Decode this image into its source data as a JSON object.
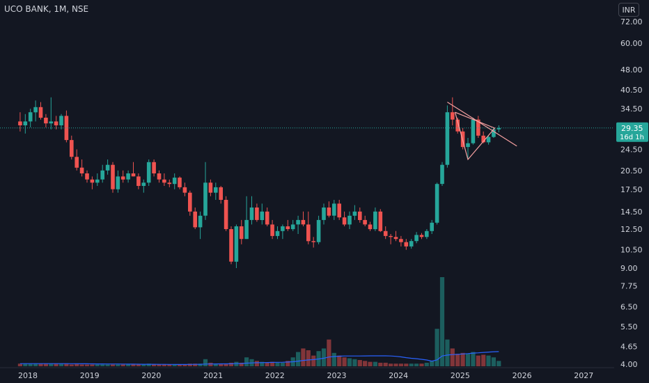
{
  "header": {
    "symbol": "UCO BANK, 1M, NSE",
    "currency": "INR"
  },
  "price_tag": {
    "value": "29.35",
    "countdown": "16d 1h",
    "color": "#26a69a"
  },
  "colors": {
    "background": "#131722",
    "up": "#26a69a",
    "down": "#ef5350",
    "trendline": "#f7a1a1",
    "volume_ma": "#2962ff",
    "axis_text": "#d1d4dc"
  },
  "chart_data": {
    "type": "candlestick",
    "scale": "log",
    "y_ticks": [
      "72.00",
      "60.00",
      "48.00",
      "40.50",
      "34.50",
      "29.35",
      "24.50",
      "20.50",
      "17.50",
      "14.50",
      "12.50",
      "10.50",
      "9.00",
      "7.75",
      "6.50",
      "5.50",
      "4.65",
      "4.00"
    ],
    "x_ticks": [
      "2018",
      "2019",
      "2020",
      "2021",
      "2022",
      "2023",
      "2024",
      "2025",
      "2026",
      "2027"
    ],
    "x_tick_start": "2018-01",
    "candles": [
      [
        31,
        33.5,
        28.5,
        30
      ],
      [
        30,
        33,
        28,
        31
      ],
      [
        31,
        34.5,
        29.5,
        33.5
      ],
      [
        33.5,
        37,
        31,
        35
      ],
      [
        35,
        36.5,
        31.5,
        32
      ],
      [
        32,
        33,
        29.5,
        30.5
      ],
      [
        30.5,
        38,
        29,
        31
      ],
      [
        31,
        32.5,
        29,
        30
      ],
      [
        30,
        33,
        29,
        32.5
      ],
      [
        32.5,
        34,
        26,
        26.5
      ],
      [
        26.5,
        27.5,
        22.5,
        23
      ],
      [
        23,
        24.5,
        20.5,
        21
      ],
      [
        21,
        22.5,
        19.5,
        20
      ],
      [
        20,
        20.5,
        18.5,
        19
      ],
      [
        19,
        19.5,
        17.5,
        18.5
      ],
      [
        18.5,
        20,
        18,
        19
      ],
      [
        19,
        21.5,
        18.5,
        20.5
      ],
      [
        20.5,
        22.5,
        19.8,
        21.5
      ],
      [
        21.5,
        22,
        17,
        17.5
      ],
      [
        17.5,
        20.5,
        17,
        19.5
      ],
      [
        19.5,
        20.5,
        18.5,
        19
      ],
      [
        19,
        20.5,
        18.5,
        20
      ],
      [
        20,
        22,
        19.5,
        19.5
      ],
      [
        19.5,
        20,
        17.5,
        18
      ],
      [
        18,
        19,
        17,
        18.5
      ],
      [
        18.5,
        22.5,
        18,
        22
      ],
      [
        22,
        22.5,
        19.5,
        20
      ],
      [
        20,
        20.5,
        18.5,
        19
      ],
      [
        19,
        20,
        18,
        18.5
      ],
      [
        18.5,
        19,
        17.8,
        18.3
      ],
      [
        18.3,
        20,
        17.5,
        19.3
      ],
      [
        19.3,
        19.5,
        17.5,
        17.8
      ],
      [
        17.8,
        18.5,
        16.5,
        17
      ],
      [
        17,
        17.3,
        14,
        14.5
      ],
      [
        14.5,
        15,
        12.5,
        12.7
      ],
      [
        12.7,
        14.5,
        11.5,
        14
      ],
      [
        14,
        22,
        13.5,
        18.5
      ],
      [
        18.5,
        19,
        16.5,
        17
      ],
      [
        17,
        18.5,
        16,
        17.8
      ],
      [
        17.8,
        18,
        15.5,
        16
      ],
      [
        16,
        16.5,
        12.3,
        12.5
      ],
      [
        12.5,
        12.8,
        9.3,
        9.5
      ],
      [
        9.5,
        13,
        9,
        12.8
      ],
      [
        12.8,
        13.5,
        11,
        11.5
      ],
      [
        11.5,
        16.5,
        11.5,
        13.5
      ],
      [
        13.5,
        16.5,
        13,
        15
      ],
      [
        15,
        15.5,
        13.3,
        13.5
      ],
      [
        13.5,
        15.5,
        13,
        14.5
      ],
      [
        14.5,
        15,
        12.8,
        13
      ],
      [
        13,
        13.5,
        11.5,
        11.8
      ],
      [
        11.8,
        12.8,
        11.5,
        12.3
      ],
      [
        12.3,
        13,
        11.5,
        12.8
      ],
      [
        12.8,
        13.5,
        12.3,
        12.5
      ],
      [
        12.5,
        13.5,
        12.3,
        13
      ],
      [
        13,
        14,
        12,
        13.5
      ],
      [
        13.5,
        14.5,
        12.8,
        13
      ],
      [
        13,
        14.5,
        11,
        11.3
      ],
      [
        11.3,
        11.7,
        10.7,
        11.2
      ],
      [
        11.2,
        14,
        11,
        13.5
      ],
      [
        13.5,
        15.5,
        13,
        15
      ],
      [
        15,
        15.8,
        13.8,
        14
      ],
      [
        14,
        16,
        13.5,
        15.5
      ],
      [
        15.5,
        16,
        13.5,
        13.8
      ],
      [
        13.8,
        14.5,
        12.8,
        13
      ],
      [
        13,
        14.5,
        12.5,
        14
      ],
      [
        14,
        15.3,
        13.5,
        14.5
      ],
      [
        14.5,
        15,
        13.2,
        13.5
      ],
      [
        13.5,
        14,
        12.8,
        13
      ],
      [
        13,
        13.3,
        12.3,
        12.5
      ],
      [
        12.5,
        15,
        12.3,
        14.5
      ],
      [
        14.5,
        14.8,
        12.2,
        12.3
      ],
      [
        12.3,
        12.8,
        11.5,
        11.8
      ],
      [
        11.8,
        12,
        11,
        11.7
      ],
      [
        11.7,
        12.3,
        11.3,
        11.5
      ],
      [
        11.5,
        11.8,
        10.8,
        11.2
      ],
      [
        11.2,
        11.5,
        10.5,
        10.8
      ],
      [
        10.8,
        11.5,
        10.6,
        11.3
      ],
      [
        11.3,
        12.2,
        11.1,
        11.9
      ],
      [
        11.9,
        12.1,
        11.5,
        11.7
      ],
      [
        11.7,
        12.5,
        11.5,
        12.3
      ],
      [
        12.3,
        13.5,
        12,
        13.2
      ],
      [
        13.2,
        18.5,
        13,
        18.3
      ],
      [
        18.3,
        22,
        18,
        21.5
      ],
      [
        21.5,
        35.5,
        21,
        33.5
      ],
      [
        33.5,
        38,
        30,
        31.5
      ],
      [
        31.5,
        32,
        28,
        28.5
      ],
      [
        28.5,
        29.3,
        24.5,
        25
      ],
      [
        25,
        27,
        22.5,
        25.8
      ],
      [
        25.8,
        32,
        25.5,
        31.5
      ],
      [
        31.5,
        32.5,
        27,
        27.5
      ],
      [
        27.5,
        28.5,
        25.8,
        26
      ],
      [
        26,
        27.5,
        25.5,
        27.2
      ],
      [
        27.2,
        29.5,
        27,
        29
      ],
      [
        29,
        30,
        28.3,
        29.35
      ]
    ],
    "volumes": [
      0.03,
      0.03,
      0.03,
      0.03,
      0.03,
      0.03,
      0.03,
      0.03,
      0.03,
      0.03,
      0.02,
      0.03,
      0.02,
      0.02,
      0.02,
      0.02,
      0.02,
      0.02,
      0.02,
      0.02,
      0.02,
      0.02,
      0.02,
      0.02,
      0.02,
      0.03,
      0.02,
      0.02,
      0.02,
      0.02,
      0.02,
      0.02,
      0.02,
      0.03,
      0.03,
      0.03,
      0.08,
      0.04,
      0.03,
      0.03,
      0.03,
      0.04,
      0.05,
      0.04,
      0.1,
      0.08,
      0.06,
      0.05,
      0.04,
      0.05,
      0.04,
      0.04,
      0.06,
      0.1,
      0.16,
      0.2,
      0.18,
      0.12,
      0.17,
      0.2,
      0.3,
      0.15,
      0.12,
      0.1,
      0.09,
      0.08,
      0.07,
      0.06,
      0.05,
      0.05,
      0.04,
      0.04,
      0.03,
      0.03,
      0.03,
      0.03,
      0.03,
      0.03,
      0.03,
      0.04,
      0.06,
      0.42,
      1.0,
      0.3,
      0.2,
      0.14,
      0.15,
      0.14,
      0.16,
      0.12,
      0.13,
      0.12,
      0.1,
      0.06
    ]
  }
}
